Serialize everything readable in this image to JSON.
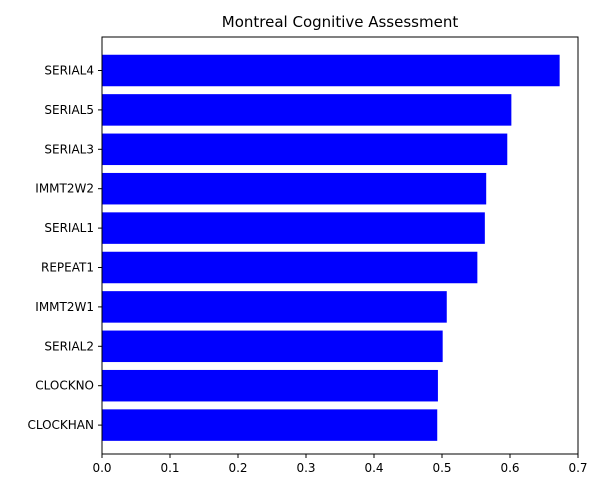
{
  "chart_data": {
    "type": "bar",
    "orientation": "horizontal",
    "title": "Montreal Cognitive Assessment",
    "xlabel": "",
    "ylabel": "",
    "categories": [
      "SERIAL4",
      "SERIAL5",
      "SERIAL3",
      "IMMT2W2",
      "SERIAL1",
      "REPEAT1",
      "IMMT2W1",
      "SERIAL2",
      "CLOCKNO",
      "CLOCKHAN"
    ],
    "values": [
      0.673,
      0.602,
      0.596,
      0.565,
      0.563,
      0.552,
      0.507,
      0.501,
      0.494,
      0.493
    ],
    "xlim": [
      0,
      0.7
    ],
    "xticks": [
      "0.0",
      "0.1",
      "0.2",
      "0.3",
      "0.4",
      "0.5",
      "0.6",
      "0.7"
    ],
    "bar_color": "#0000ff",
    "grid": false,
    "legend": false
  }
}
